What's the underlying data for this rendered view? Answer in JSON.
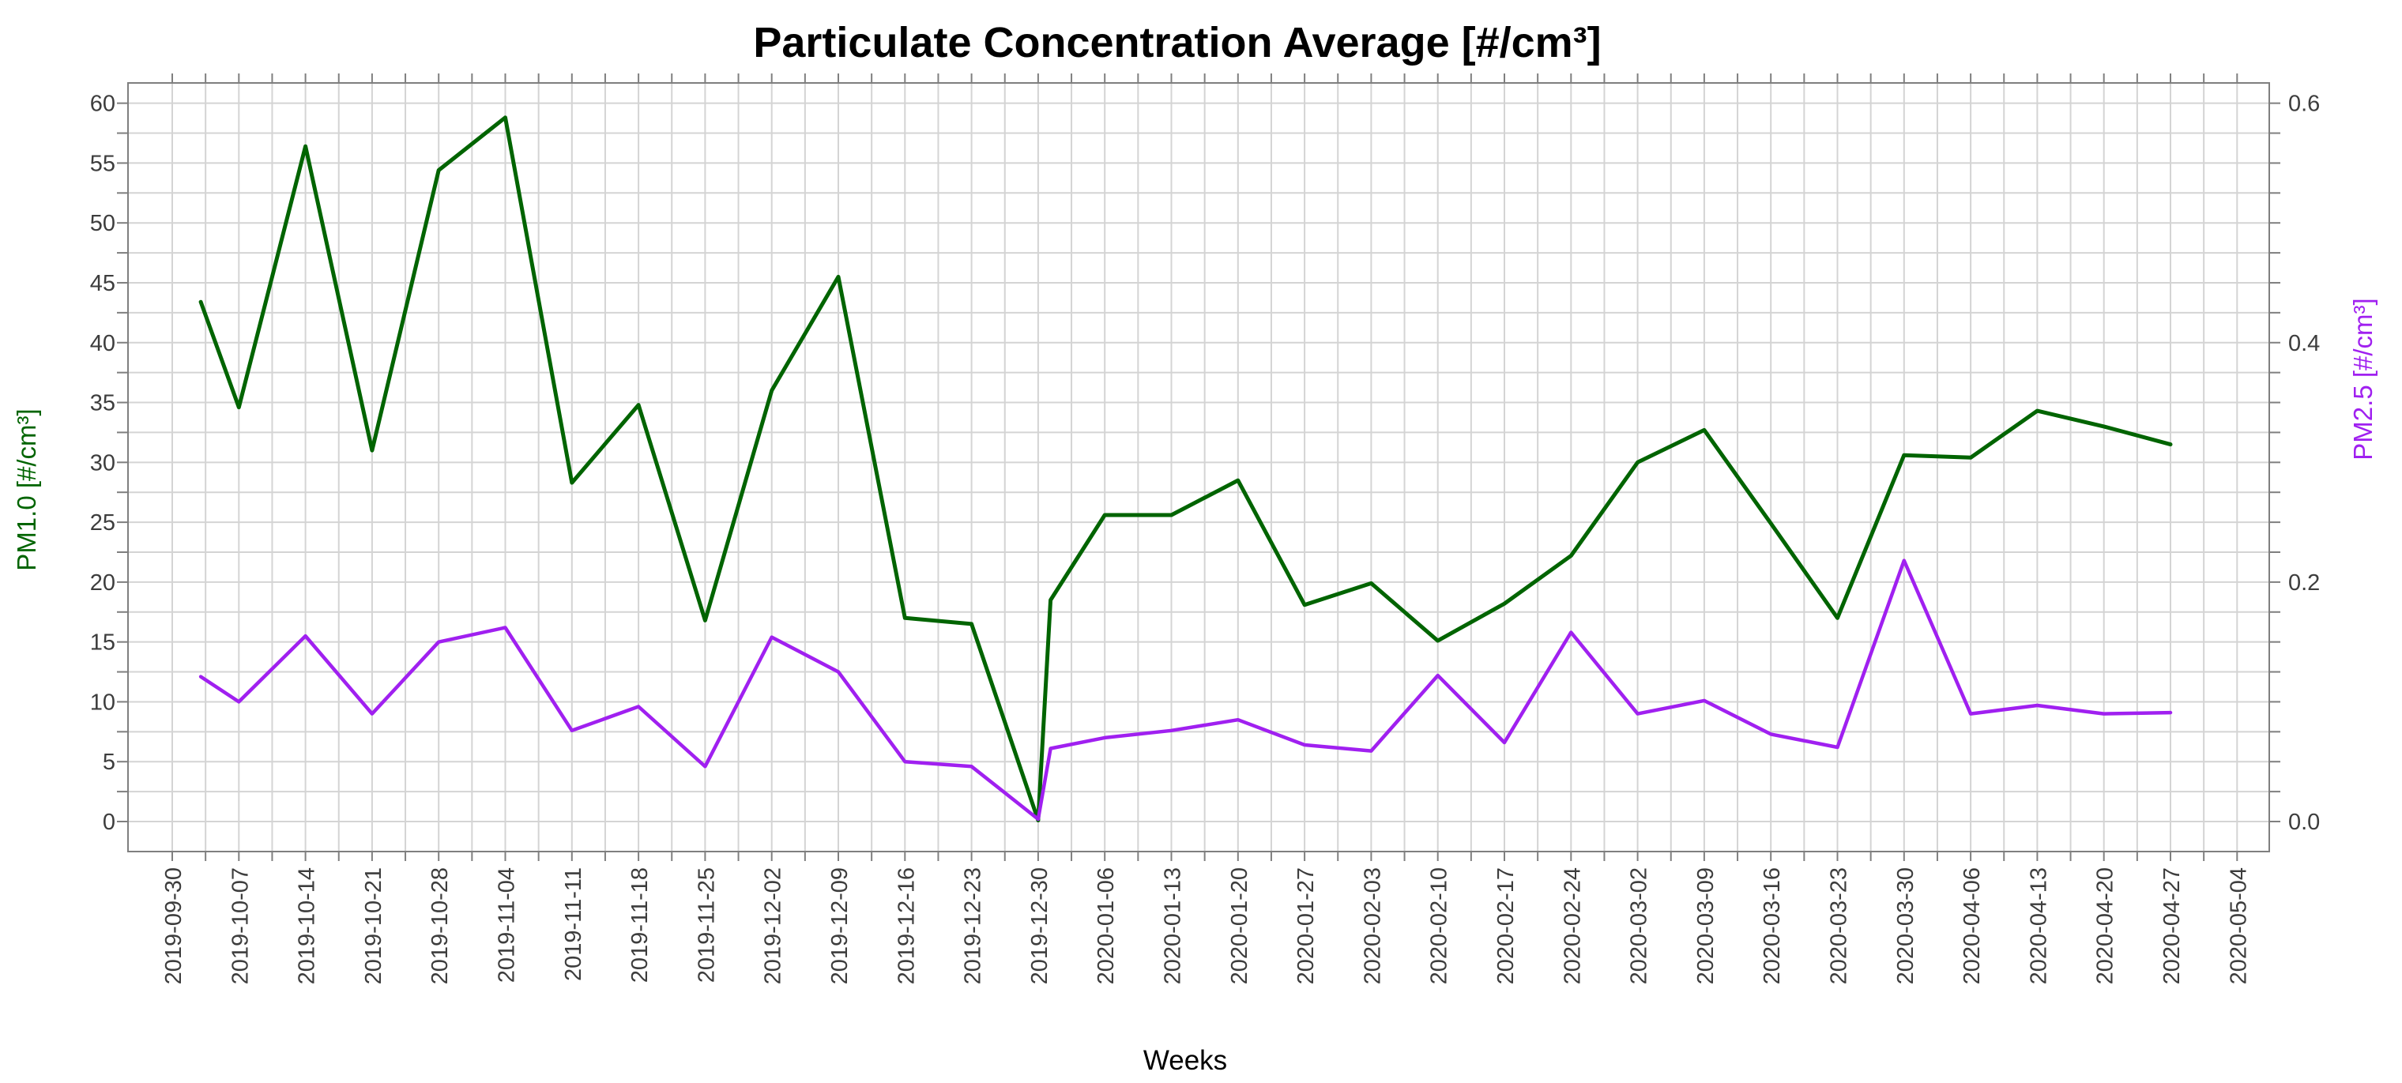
{
  "title": "Particulate Concentration Average [#/cm³]",
  "chart_data": {
    "type": "line",
    "title": "Particulate Concentration Average [#/cm³]",
    "grid": "on",
    "legend_position": "none",
    "x_axis": {
      "label": "Weeks",
      "tick_labels": [
        "2019-09-30",
        "2019-10-07",
        "2019-10-14",
        "2019-10-21",
        "2019-10-28",
        "2019-11-04",
        "2019-11-11",
        "2019-11-18",
        "2019-11-25",
        "2019-12-02",
        "2019-12-09",
        "2019-12-16",
        "2019-12-23",
        "2019-12-30",
        "2020-01-06",
        "2020-01-13",
        "2020-01-20",
        "2020-01-27",
        "2020-02-03",
        "2020-02-10",
        "2020-02-17",
        "2020-02-24",
        "2020-03-02",
        "2020-03-09",
        "2020-03-16",
        "2020-03-23",
        "2020-03-30",
        "2020-04-06",
        "2020-04-13",
        "2020-04-20",
        "2020-04-27",
        "2020-05-04"
      ],
      "tick_interval_days": 7,
      "minor_gridlines_per_week": 2
    },
    "left_axis": {
      "label": "PM1.0 [#/cm³]",
      "color": "#006400",
      "range": [
        0,
        60
      ],
      "tick_labels": [
        "0",
        "5",
        "10",
        "15",
        "20",
        "25",
        "30",
        "35",
        "40",
        "45",
        "50",
        "55",
        "60"
      ],
      "tick_step": 5,
      "minor_step": 2.5
    },
    "right_axis": {
      "label": "PM2.5 [#/cm³]",
      "color": "#A020F0",
      "range": [
        0,
        0.6
      ],
      "tick_labels": [
        "0.0",
        "0.2",
        "0.4",
        "0.6"
      ],
      "tick_values": [
        0.0,
        0.2,
        0.4,
        0.6
      ],
      "minor_step": 0.025
    },
    "series": [
      {
        "name": "PM1.0",
        "axis": "left",
        "color": "#006400",
        "stroke_width": 5,
        "x_days": [
          3,
          7,
          14,
          21,
          28,
          35,
          42,
          49,
          56,
          63,
          70,
          77,
          84,
          91,
          92.3,
          98,
          105,
          112,
          119,
          126,
          133,
          140,
          147,
          154,
          161,
          168,
          175,
          182,
          189,
          196,
          203,
          210
        ],
        "values": [
          43.4,
          34.6,
          56.4,
          31.0,
          54.4,
          58.8,
          28.3,
          34.8,
          16.8,
          36.0,
          45.5,
          17.0,
          16.5,
          0.1,
          18.5,
          25.6,
          25.6,
          28.5,
          18.1,
          19.9,
          15.1,
          18.2,
          22.2,
          30.0,
          32.7,
          24.9,
          17.0,
          30.6,
          30.4,
          34.3,
          33.0,
          31.5
        ]
      },
      {
        "name": "PM2.5",
        "axis": "right",
        "color": "#A020F0",
        "stroke_width": 4.5,
        "x_days": [
          3,
          7,
          14,
          21,
          28,
          35,
          42,
          49,
          56,
          63,
          70,
          77,
          84,
          91,
          92.3,
          98,
          105,
          112,
          119,
          126,
          133,
          140,
          147,
          154,
          161,
          168,
          175,
          182,
          189,
          196,
          203,
          210
        ],
        "values": [
          0.121,
          0.1,
          0.155,
          0.09,
          0.15,
          0.162,
          0.076,
          0.096,
          0.046,
          0.154,
          0.125,
          0.05,
          0.046,
          0.002,
          0.061,
          0.07,
          0.076,
          0.085,
          0.064,
          0.059,
          0.122,
          0.066,
          0.158,
          0.09,
          0.101,
          0.073,
          0.062,
          0.218,
          0.09,
          0.097,
          0.09,
          0.091
        ]
      }
    ],
    "style": {
      "gridline_color": "#d4d4d4",
      "frame_color": "#7f7f7f",
      "tick_color": "#7f7f7f",
      "tick_text_color": "#3d3d3d",
      "background": "#ffffff"
    }
  }
}
